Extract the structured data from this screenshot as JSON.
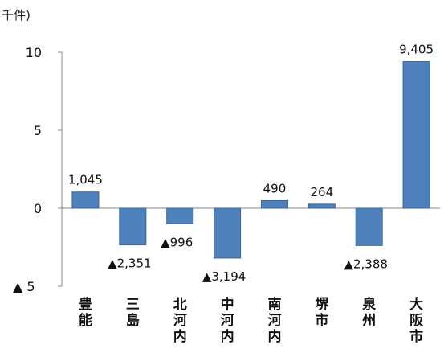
{
  "chart_data": {
    "type": "bar",
    "unit_label": "千件)",
    "categories": [
      [
        "豊",
        "能"
      ],
      [
        "三",
        "島"
      ],
      [
        "北",
        "河",
        "内"
      ],
      [
        "中",
        "河",
        "内"
      ],
      [
        "南",
        "河",
        "内"
      ],
      [
        "堺",
        "市"
      ],
      [
        "泉",
        "州"
      ],
      [
        "大",
        "阪",
        "市"
      ]
    ],
    "values": [
      1045,
      -2351,
      -996,
      -3194,
      490,
      264,
      -2388,
      9405
    ],
    "data_labels": [
      "1,045",
      "▲2,351",
      "▲996",
      "▲3,194",
      "490",
      "264",
      "▲2,388",
      "9,405"
    ],
    "yticks": [
      {
        "value": -5,
        "label": "▲ 5"
      },
      {
        "value": 0,
        "label": "0"
      },
      {
        "value": 5,
        "label": "5"
      },
      {
        "value": 10,
        "label": "10"
      }
    ],
    "ylim": [
      -5,
      10
    ],
    "value_scale": 1000,
    "bar_color": "#4f81bd",
    "bar_edge_color": "#3a6596",
    "grid": false
  }
}
